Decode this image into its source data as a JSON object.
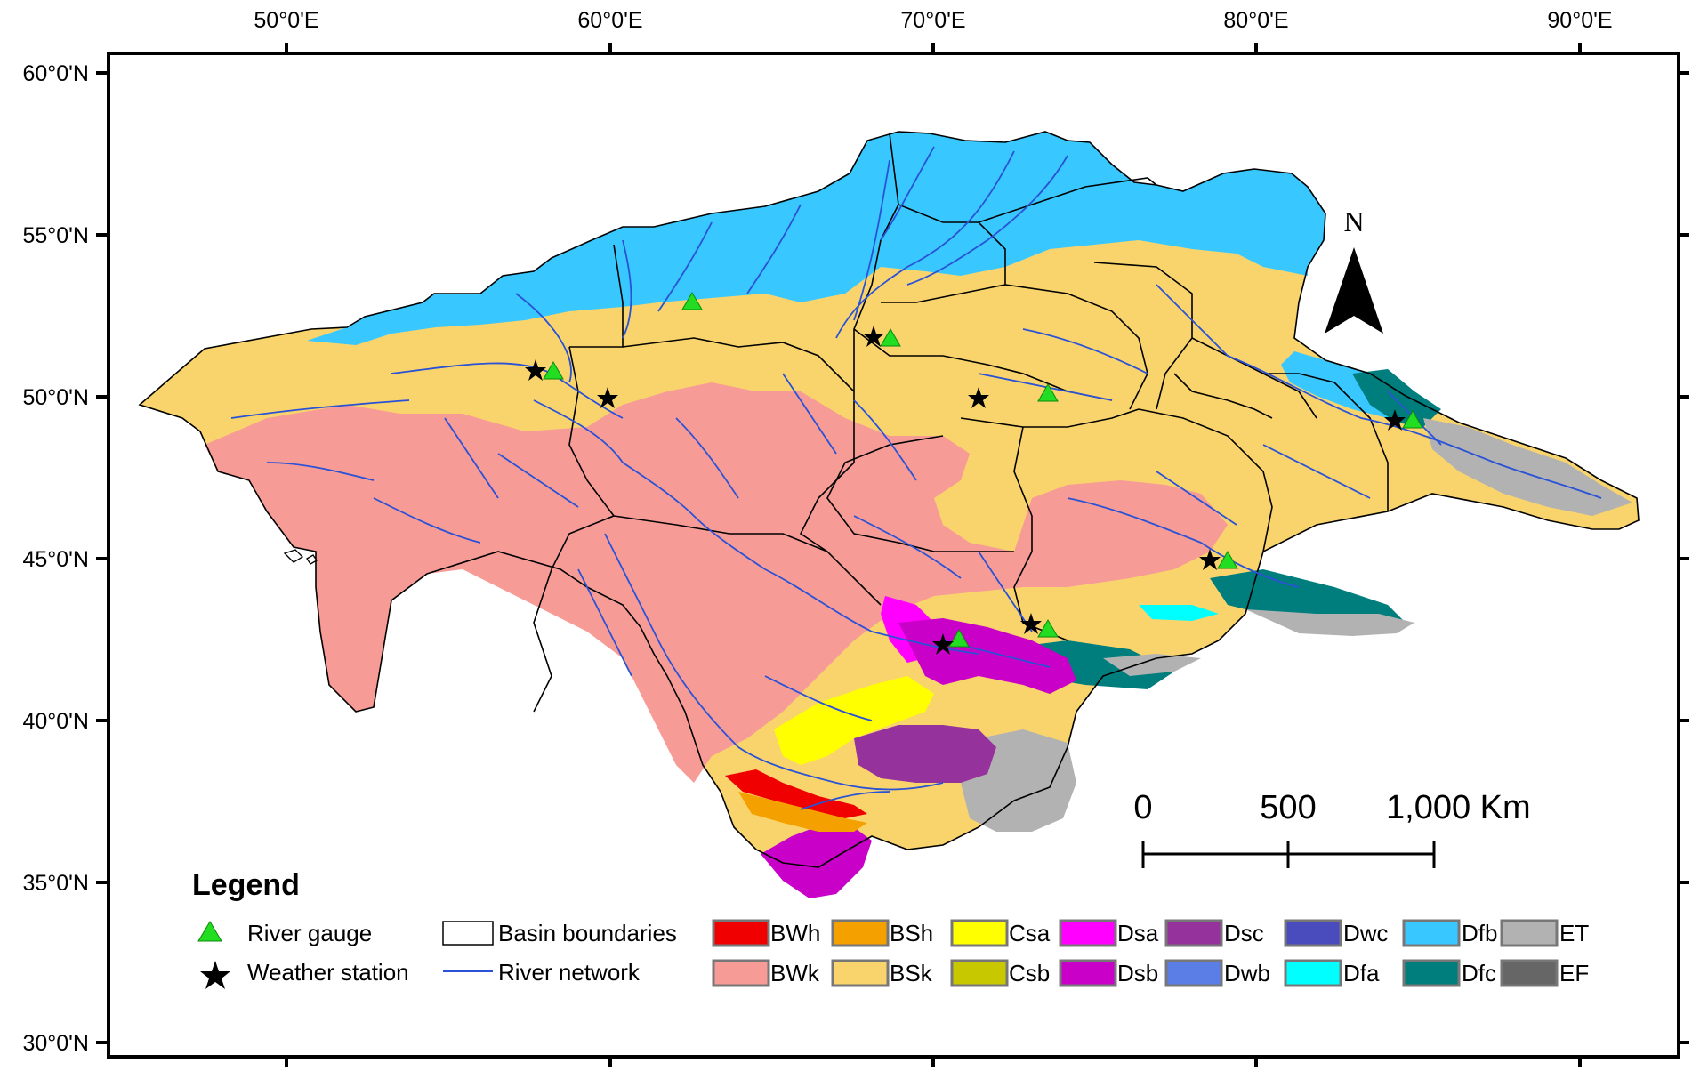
{
  "axes": {
    "longitude_labels": [
      "50°0'E",
      "60°0'E",
      "70°0'E",
      "80°0'E",
      "90°0'E"
    ],
    "latitude_labels": [
      "60°0'N",
      "55°0'N",
      "50°0'N",
      "45°0'N",
      "40°0'N",
      "35°0'N",
      "30°0'N"
    ]
  },
  "north_arrow": {
    "label": "N"
  },
  "scale_bar": {
    "labels": [
      "0",
      "500",
      "1,000 Km"
    ]
  },
  "legend": {
    "title": "Legend",
    "symbols": [
      {
        "label": "River gauge",
        "symbol": "green-triangle",
        "color": "#22dd22"
      },
      {
        "label": "Weather station",
        "symbol": "black-star",
        "color": "#000000"
      },
      {
        "label": "Basin boundaries",
        "symbol": "outline-box",
        "color": "#000000"
      },
      {
        "label": "River network",
        "symbol": "blue-line",
        "color": "#2a52d6"
      }
    ],
    "climate_classes": [
      {
        "code": "BWh",
        "color": "#f00000"
      },
      {
        "code": "BSh",
        "color": "#f4a100"
      },
      {
        "code": "Csa",
        "color": "#ffff00"
      },
      {
        "code": "Dsa",
        "color": "#ff00ff"
      },
      {
        "code": "Dsc",
        "color": "#96329b"
      },
      {
        "code": "Dwc",
        "color": "#4a4cbe"
      },
      {
        "code": "Dfb",
        "color": "#38c8ff"
      },
      {
        "code": "ET",
        "color": "#b2b2b2"
      },
      {
        "code": "BWk",
        "color": "#f79b96"
      },
      {
        "code": "BSk",
        "color": "#f9d46d"
      },
      {
        "code": "Csb",
        "color": "#c8c800"
      },
      {
        "code": "Dsb",
        "color": "#c800c8"
      },
      {
        "code": "Dwb",
        "color": "#5a7ee6"
      },
      {
        "code": "Dfa",
        "color": "#00ffff"
      },
      {
        "code": "Dfc",
        "color": "#007d7d"
      },
      {
        "code": "EF",
        "color": "#666666"
      }
    ]
  }
}
